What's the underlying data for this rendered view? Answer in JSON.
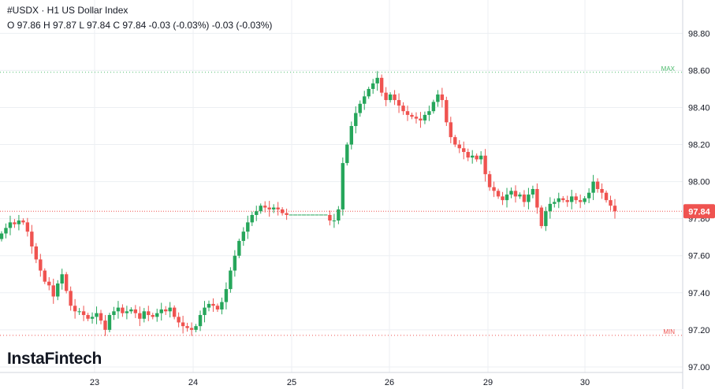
{
  "header": {
    "symbol": "#USDX",
    "timeframe": "H1",
    "title": "#USDX · H1 US Dollar Index",
    "ohlc": "O 97.86 H 97.87 L 97.84 C 97.84 -0.03 (-0.03%) -0.03 (-0.03%)"
  },
  "logo": "InstaFintech",
  "colors": {
    "up": "#26a65b",
    "down": "#ef5350",
    "max": "#4cbb6c",
    "min": "#ef5350",
    "grid": "#eceff3"
  },
  "chart_data": {
    "type": "candlestick",
    "x_tick_labels": [
      "23",
      "24",
      "25",
      "26",
      "29",
      "30"
    ],
    "y_ticks": [
      97.0,
      97.2,
      97.4,
      97.6,
      97.8,
      98.0,
      98.2,
      98.4,
      98.6,
      98.8
    ],
    "y_tick_labels": [
      "97.00",
      "97.20",
      "97.40",
      "97.60",
      "97.80",
      "98.00",
      "98.20",
      "98.40",
      "98.60",
      "98.80"
    ],
    "ylim": [
      96.97,
      98.98
    ],
    "current_price": 97.84,
    "current_price_label": "97.84",
    "max": {
      "label": "MAX",
      "value": 98.59
    },
    "min": {
      "label": "MIN",
      "value": 97.17
    },
    "grid": true,
    "closes": [
      97.72,
      97.75,
      97.78,
      97.77,
      97.79,
      97.78,
      97.73,
      97.65,
      97.58,
      97.52,
      97.46,
      97.44,
      97.38,
      97.45,
      97.5,
      97.41,
      97.33,
      97.3,
      97.3,
      97.28,
      97.26,
      97.27,
      97.29,
      97.25,
      97.2,
      97.28,
      97.3,
      97.32,
      97.29,
      97.3,
      97.31,
      97.29,
      97.26,
      97.3,
      97.28,
      97.27,
      97.29,
      97.31,
      97.3,
      97.32,
      97.27,
      97.24,
      97.22,
      97.21,
      97.2,
      97.22,
      97.28,
      97.32,
      97.34,
      97.33,
      97.31,
      97.35,
      97.42,
      97.52,
      97.6,
      97.68,
      97.73,
      97.78,
      97.82,
      97.84,
      97.87,
      97.86,
      97.85,
      97.86,
      97.85,
      97.83,
      97.82,
      97.82,
      97.82,
      97.82,
      97.82,
      97.82,
      97.82,
      97.82,
      97.82,
      97.82,
      97.79,
      97.79,
      97.85,
      98.1,
      98.2,
      98.3,
      98.37,
      98.42,
      98.46,
      98.5,
      98.53,
      98.56,
      98.48,
      98.44,
      98.47,
      98.44,
      98.41,
      98.38,
      98.36,
      98.35,
      98.34,
      98.33,
      98.36,
      98.38,
      98.43,
      98.47,
      98.44,
      98.32,
      98.24,
      98.2,
      98.18,
      98.16,
      98.13,
      98.14,
      98.12,
      98.14,
      98.04,
      97.97,
      97.95,
      97.92,
      97.9,
      97.93,
      97.95,
      97.92,
      97.93,
      97.89,
      97.93,
      97.96,
      97.86,
      97.76,
      97.84,
      97.88,
      97.89,
      97.91,
      97.9,
      97.89,
      97.92,
      97.9,
      97.89,
      97.91,
      97.94,
      98.0,
      97.96,
      97.94,
      97.9,
      97.87,
      97.84
    ]
  }
}
